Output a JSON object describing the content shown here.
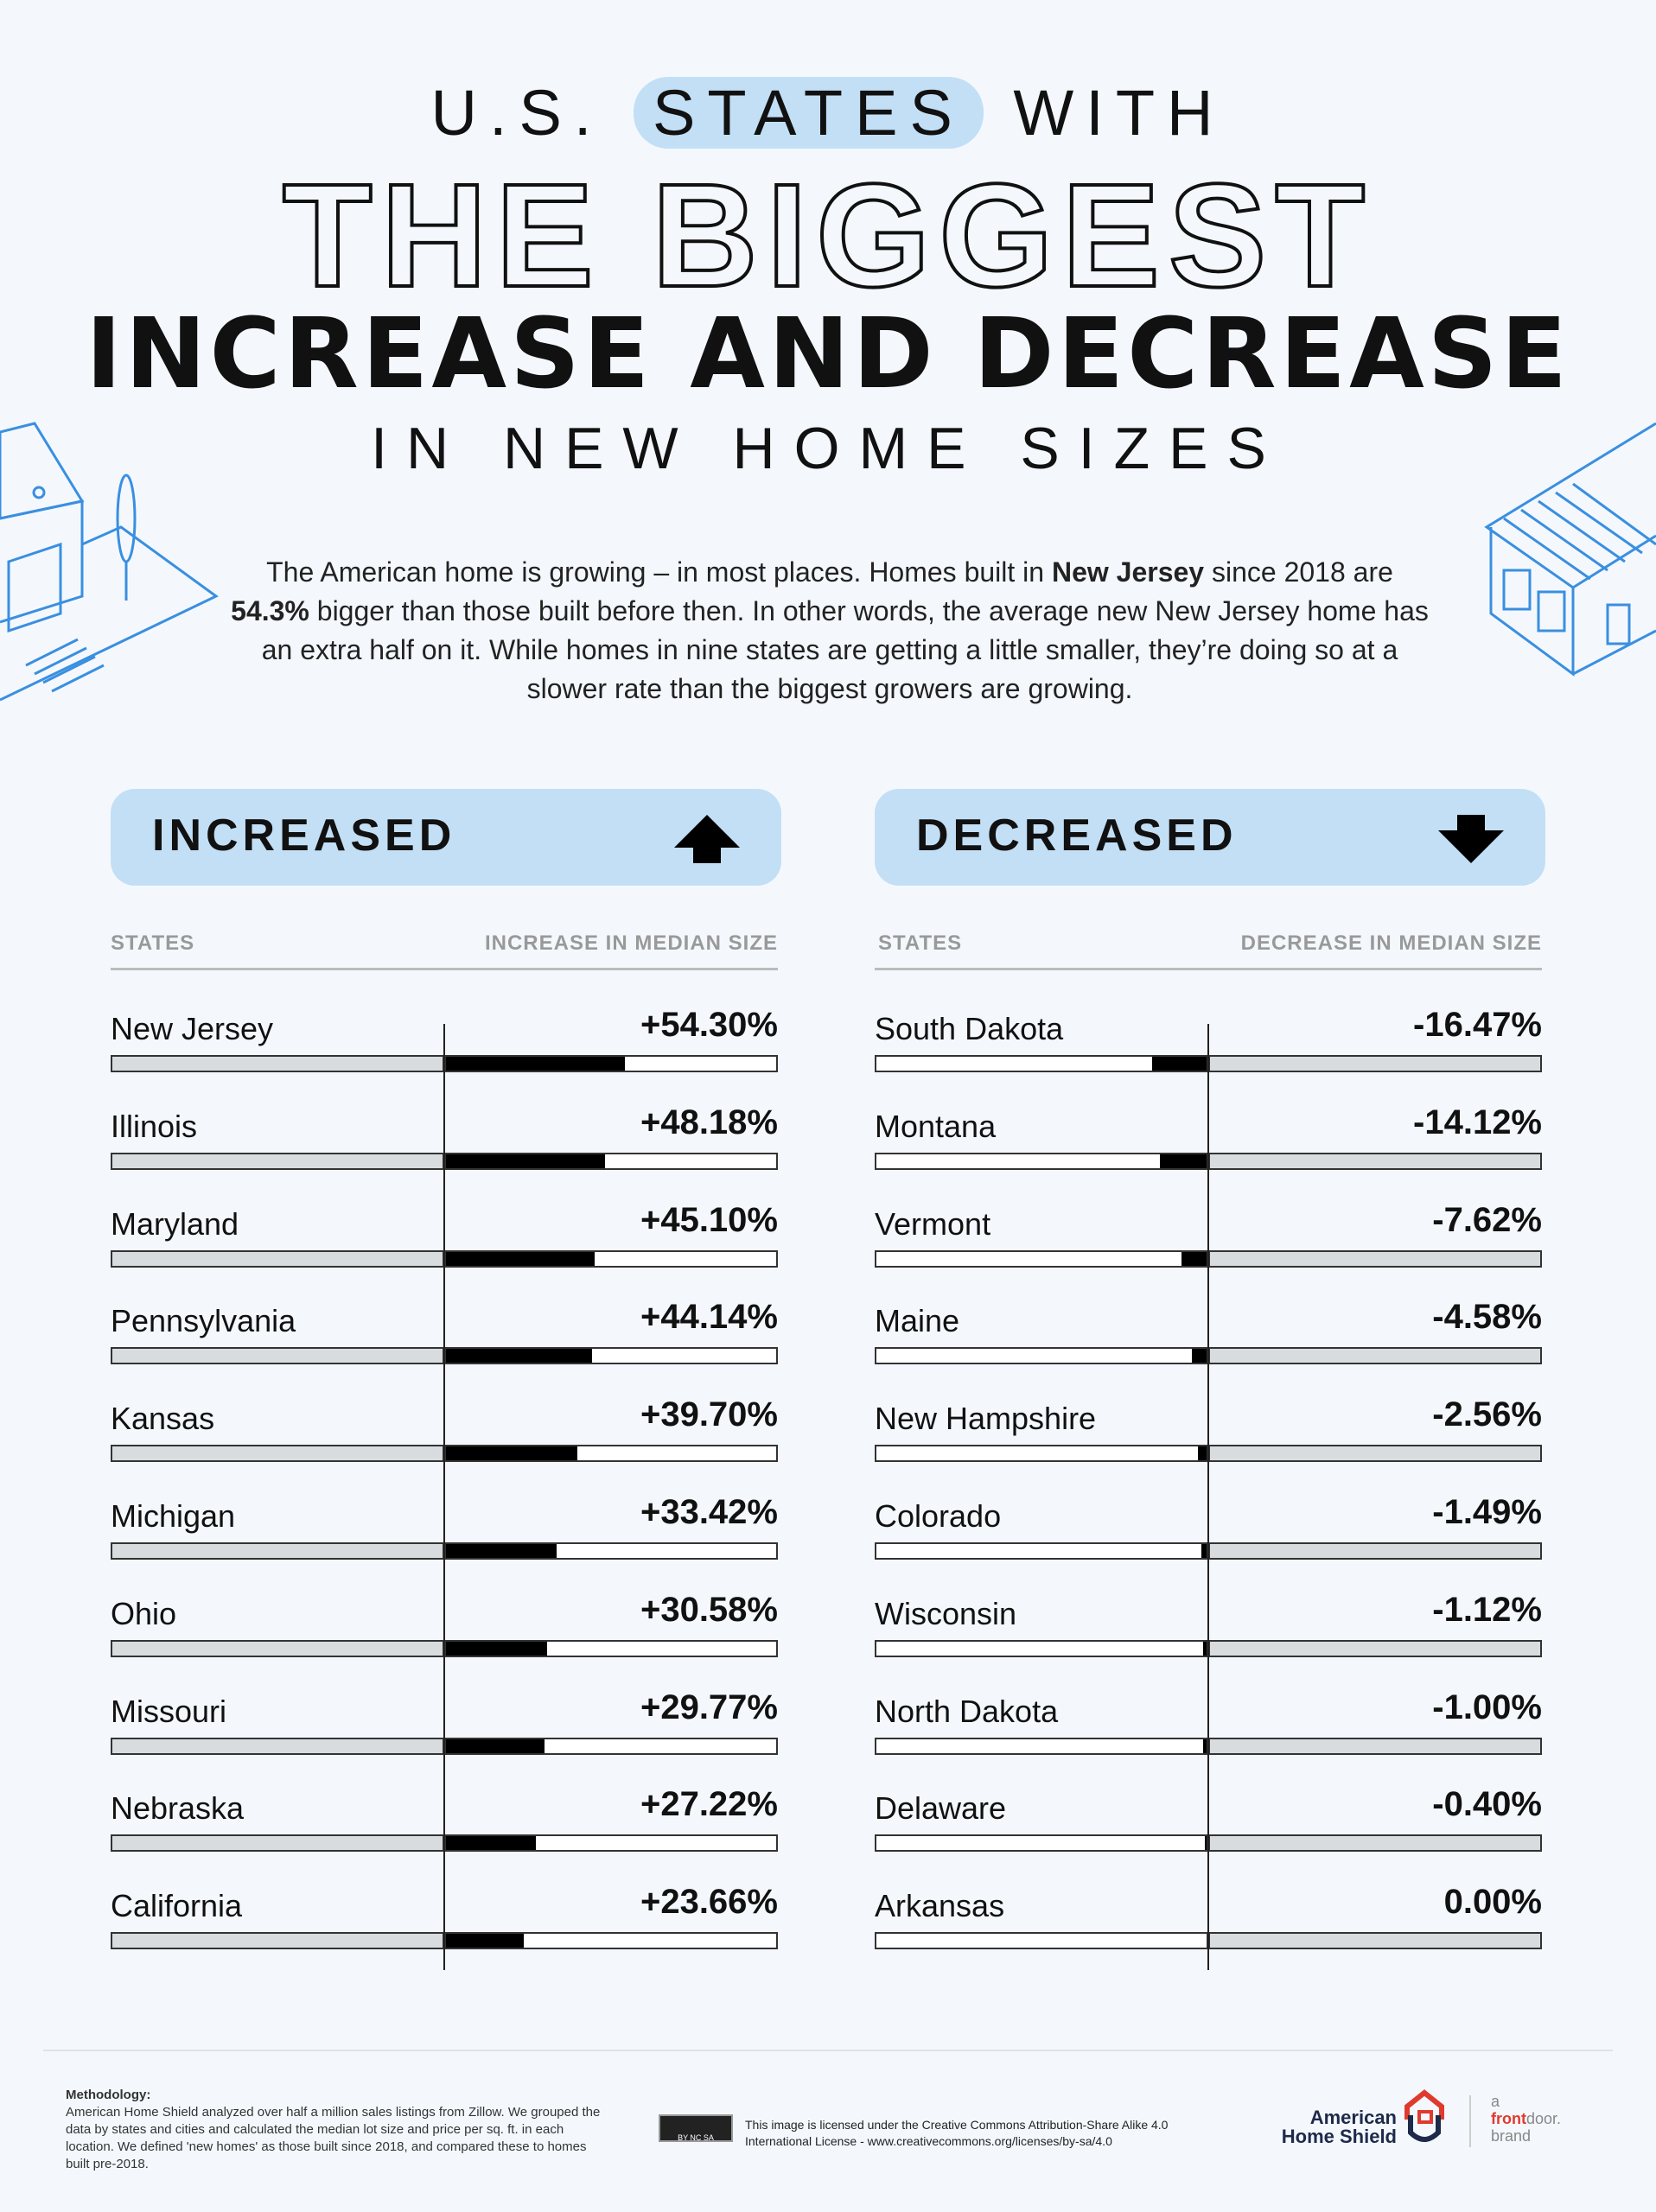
{
  "title": {
    "line1_pre": "U.S.",
    "line1_hl": "STATES",
    "line1_post": "WITH",
    "line2": "THE BIGGEST",
    "line3": "INCREASE AND DECREASE",
    "line4": "IN NEW HOME SIZES"
  },
  "intro": {
    "p1": "The American home is growing – in most places. Homes built in ",
    "b1": "New Jersey",
    "p2": " since 2018 are ",
    "b2": "54.3%",
    "p3": " bigger than those built before then. In other words, the average new New Jersey home has an extra half on it. While homes in nine states are getting a little smaller, they’re doing so at a slower rate than the biggest growers are growing."
  },
  "chart_data": [
    {
      "type": "bar",
      "title": "INCREASED",
      "icon": "arrow-up-icon",
      "xlabel": "STATES",
      "ylabel": "INCREASE IN MEDIAN SIZE",
      "ylim": [
        0,
        100
      ],
      "categories": [
        "New Jersey",
        "Illinois",
        "Maryland",
        "Pennsylvania",
        "Kansas",
        "Michigan",
        "Ohio",
        "Missouri",
        "Nebraska",
        "California"
      ],
      "values": [
        54.3,
        48.18,
        45.1,
        44.14,
        39.7,
        33.42,
        30.58,
        29.77,
        27.22,
        23.66
      ],
      "labels": [
        "+54.30%",
        "+48.18%",
        "+45.10%",
        "+44.14%",
        "+39.70%",
        "+33.42%",
        "+30.58%",
        "+29.77%",
        "+27.22%",
        "+23.66%"
      ]
    },
    {
      "type": "bar",
      "title": "DECREASED",
      "icon": "arrow-down-icon",
      "xlabel": "STATES",
      "ylabel": "DECREASE IN MEDIAN SIZE",
      "ylim": [
        -100,
        0
      ],
      "categories": [
        "South Dakota",
        "Montana",
        "Vermont",
        "Maine",
        "New Hampshire",
        "Colorado",
        "Wisconsin",
        "North Dakota",
        "Delaware",
        "Arkansas"
      ],
      "values": [
        -16.47,
        -14.12,
        -7.62,
        -4.58,
        -2.56,
        -1.49,
        -1.12,
        -1.0,
        -0.4,
        0.0
      ],
      "labels": [
        "-16.47%",
        "-14.12%",
        "-7.62%",
        "-4.58%",
        "-2.56%",
        "-1.49%",
        "-1.12%",
        "-1.00%",
        "-0.40%",
        "0.00%"
      ]
    }
  ],
  "footer": {
    "meth_title": "Methodology:",
    "meth_text": "American Home Shield analyzed over half a million sales listings from Zillow. We grouped the data by states and cities and calculated the median lot size and price per sq. ft. in each location. We defined 'new homes' as those built since 2018, and compared these to homes built pre-2018.",
    "license": "This image is licensed under the Creative Commons Attribution-Share Alike 4.0 International License - www.creativecommons.org/licenses/by-sa/4.0",
    "cc_badge": "BY NC SA",
    "brand1": "American",
    "brand2": "Home Shield",
    "fd_a": "a",
    "fd_front": "front",
    "fd_door": "door.",
    "fd_brand": "brand"
  },
  "colors": {
    "accent": "#c2dff5",
    "bar": "#000000",
    "track": "#d9dcdf",
    "illus": "#3a8fe0",
    "brand_red": "#e03a2e",
    "brand_navy": "#1d2a4a"
  }
}
